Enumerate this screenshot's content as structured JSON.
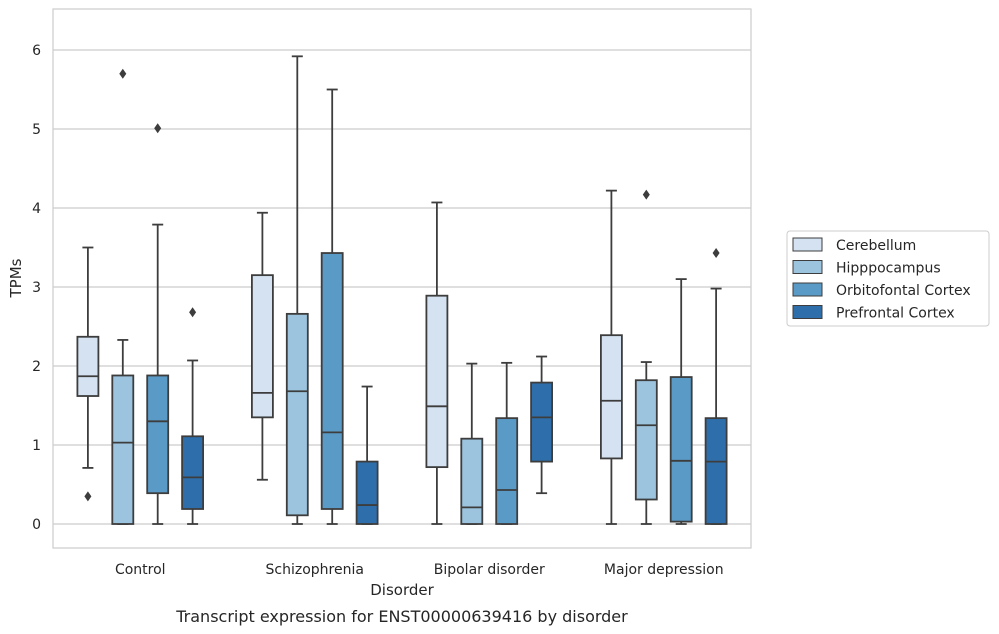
{
  "chart_data": {
    "type": "boxplot",
    "title": "Transcript expression for ENST00000639416 by disorder",
    "xlabel": "Disorder",
    "ylabel": "TPMs",
    "ylim": [
      -0.3,
      6.5
    ],
    "yticks": [
      "0",
      "1",
      "2",
      "3",
      "4",
      "5",
      "6"
    ],
    "categories": [
      "Control",
      "Schizophrenia",
      "Bipolar disorder",
      "Major depression"
    ],
    "grid": "horizontal",
    "legend_position": "right",
    "series": [
      {
        "name": "Cerebellum",
        "color": "#d4e2f1",
        "boxes": [
          {
            "whisker_low": 0.71,
            "q1": 1.62,
            "median": 1.87,
            "q3": 2.37,
            "whisker_high": 3.5,
            "outliers": [
              0.35
            ]
          },
          {
            "whisker_low": 0.56,
            "q1": 1.35,
            "median": 1.66,
            "q3": 3.15,
            "whisker_high": 3.94,
            "outliers": []
          },
          {
            "whisker_low": 0.0,
            "q1": 0.72,
            "median": 1.49,
            "q3": 2.89,
            "whisker_high": 4.07,
            "outliers": []
          },
          {
            "whisker_low": 0.0,
            "q1": 0.83,
            "median": 1.56,
            "q3": 2.39,
            "whisker_high": 4.22,
            "outliers": []
          }
        ]
      },
      {
        "name": "Hipppocampus",
        "color": "#9cc4df",
        "boxes": [
          {
            "whisker_low": 0.0,
            "q1": 0.0,
            "median": 1.03,
            "q3": 1.88,
            "whisker_high": 2.33,
            "outliers": [
              5.7
            ]
          },
          {
            "whisker_low": 0.0,
            "q1": 0.11,
            "median": 1.68,
            "q3": 2.66,
            "whisker_high": 5.92,
            "outliers": []
          },
          {
            "whisker_low": 0.0,
            "q1": 0.0,
            "median": 0.21,
            "q3": 1.08,
            "whisker_high": 2.03,
            "outliers": []
          },
          {
            "whisker_low": 0.0,
            "q1": 0.31,
            "median": 1.25,
            "q3": 1.82,
            "whisker_high": 2.05,
            "outliers": [
              4.17
            ]
          }
        ]
      },
      {
        "name": "Orbitofontal Cortex",
        "color": "#5a9ac6",
        "boxes": [
          {
            "whisker_low": 0.0,
            "q1": 0.39,
            "median": 1.3,
            "q3": 1.88,
            "whisker_high": 3.79,
            "outliers": [
              5.01
            ]
          },
          {
            "whisker_low": 0.0,
            "q1": 0.19,
            "median": 1.16,
            "q3": 3.43,
            "whisker_high": 5.5,
            "outliers": []
          },
          {
            "whisker_low": 0.0,
            "q1": 0.0,
            "median": 0.43,
            "q3": 1.34,
            "whisker_high": 2.04,
            "outliers": []
          },
          {
            "whisker_low": 0.0,
            "q1": 0.03,
            "median": 0.8,
            "q3": 1.86,
            "whisker_high": 3.1,
            "outliers": []
          }
        ]
      },
      {
        "name": "Prefrontal Cortex",
        "color": "#2e6fab",
        "boxes": [
          {
            "whisker_low": 0.0,
            "q1": 0.19,
            "median": 0.59,
            "q3": 1.11,
            "whisker_high": 2.07,
            "outliers": [
              2.68
            ]
          },
          {
            "whisker_low": 0.0,
            "q1": 0.0,
            "median": 0.24,
            "q3": 0.79,
            "whisker_high": 1.74,
            "outliers": []
          },
          {
            "whisker_low": 0.39,
            "q1": 0.79,
            "median": 1.35,
            "q3": 1.79,
            "whisker_high": 2.12,
            "outliers": []
          },
          {
            "whisker_low": 0.0,
            "q1": 0.0,
            "median": 0.79,
            "q3": 1.34,
            "whisker_high": 2.98,
            "outliers": [
              3.43
            ]
          }
        ]
      }
    ]
  }
}
